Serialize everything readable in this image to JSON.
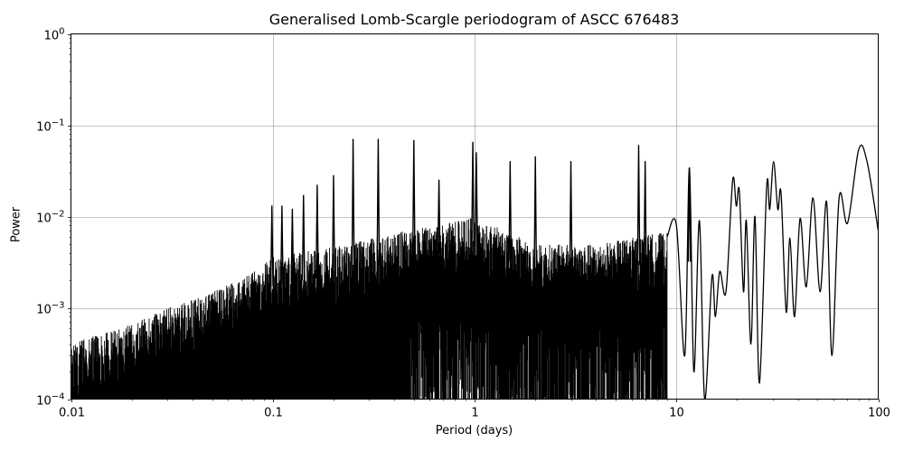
{
  "chart_data": {
    "type": "line",
    "title": "Generalised Lomb-Scargle periodogram of ASCC 676483",
    "xlabel": "Period (days)",
    "ylabel": "Power",
    "xscale": "log",
    "yscale": "log",
    "xlim": [
      0.01,
      100
    ],
    "ylim": [
      0.0001,
      1
    ],
    "grid": true,
    "line_color": "#000000",
    "x_ticks": [
      {
        "value": 0.01,
        "label": "0.01"
      },
      {
        "value": 0.1,
        "label": "0.1"
      },
      {
        "value": 1,
        "label": "1"
      },
      {
        "value": 10,
        "label": "10"
      },
      {
        "value": 100,
        "label": "100"
      }
    ],
    "y_ticks": [
      {
        "value": 1,
        "base": "10",
        "exp": "0"
      },
      {
        "value": 0.1,
        "base": "10",
        "exp": "−1"
      },
      {
        "value": 0.01,
        "base": "10",
        "exp": "−2"
      },
      {
        "value": 0.001,
        "base": "10",
        "exp": "−3"
      },
      {
        "value": 0.0001,
        "base": "10",
        "exp": "−4"
      }
    ],
    "noise_envelope": [
      {
        "period": 0.01,
        "power": 0.00025
      },
      {
        "period": 0.02,
        "power": 0.0004
      },
      {
        "period": 0.03,
        "power": 0.0006
      },
      {
        "period": 0.05,
        "power": 0.0009
      },
      {
        "period": 0.08,
        "power": 0.0015
      },
      {
        "period": 0.1,
        "power": 0.0022
      },
      {
        "period": 0.2,
        "power": 0.0028
      },
      {
        "period": 0.4,
        "power": 0.004
      },
      {
        "period": 0.7,
        "power": 0.005
      },
      {
        "period": 1.0,
        "power": 0.006
      },
      {
        "period": 2.0,
        "power": 0.003
      },
      {
        "period": 4.0,
        "power": 0.003
      },
      {
        "period": 8.0,
        "power": 0.004
      }
    ],
    "peaks": [
      {
        "period": 0.099,
        "power": 0.013
      },
      {
        "period": 0.111,
        "power": 0.013
      },
      {
        "period": 0.125,
        "power": 0.012
      },
      {
        "period": 0.142,
        "power": 0.017
      },
      {
        "period": 0.166,
        "power": 0.022
      },
      {
        "period": 0.2,
        "power": 0.028
      },
      {
        "period": 0.25,
        "power": 0.07
      },
      {
        "period": 0.333,
        "power": 0.07
      },
      {
        "period": 0.5,
        "power": 0.068
      },
      {
        "period": 0.666,
        "power": 0.025
      },
      {
        "period": 0.98,
        "power": 0.065
      },
      {
        "period": 1.02,
        "power": 0.05
      },
      {
        "period": 1.5,
        "power": 0.04
      },
      {
        "period": 2.0,
        "power": 0.045
      },
      {
        "period": 3.0,
        "power": 0.04
      },
      {
        "period": 6.5,
        "power": 0.06
      },
      {
        "period": 7.0,
        "power": 0.04
      },
      {
        "period": 11.6,
        "power": 0.034
      }
    ],
    "long_period_curve": [
      {
        "period": 9.0,
        "power": 0.006
      },
      {
        "period": 10.0,
        "power": 0.008
      },
      {
        "period": 11.0,
        "power": 0.0003
      },
      {
        "period": 11.6,
        "power": 0.034
      },
      {
        "period": 12.2,
        "power": 0.0002
      },
      {
        "period": 13.0,
        "power": 0.009
      },
      {
        "period": 13.8,
        "power": 0.0001
      },
      {
        "period": 15.0,
        "power": 0.0022
      },
      {
        "period": 15.6,
        "power": 0.0008
      },
      {
        "period": 16.4,
        "power": 0.0025
      },
      {
        "period": 17.6,
        "power": 0.0015
      },
      {
        "period": 19.0,
        "power": 0.025
      },
      {
        "period": 19.8,
        "power": 0.013
      },
      {
        "period": 20.5,
        "power": 0.019
      },
      {
        "period": 21.5,
        "power": 0.0015
      },
      {
        "period": 22.2,
        "power": 0.009
      },
      {
        "period": 23.4,
        "power": 0.0004
      },
      {
        "period": 24.5,
        "power": 0.01
      },
      {
        "period": 25.8,
        "power": 0.00015
      },
      {
        "period": 28.0,
        "power": 0.021
      },
      {
        "period": 29.0,
        "power": 0.012
      },
      {
        "period": 30.3,
        "power": 0.04
      },
      {
        "period": 31.8,
        "power": 0.012
      },
      {
        "period": 33.0,
        "power": 0.018
      },
      {
        "period": 35.0,
        "power": 0.0009
      },
      {
        "period": 36.5,
        "power": 0.0058
      },
      {
        "period": 38.5,
        "power": 0.0008
      },
      {
        "period": 41.0,
        "power": 0.0095
      },
      {
        "period": 44.0,
        "power": 0.0017
      },
      {
        "period": 47.5,
        "power": 0.016
      },
      {
        "period": 51.5,
        "power": 0.0015
      },
      {
        "period": 55.5,
        "power": 0.0145
      },
      {
        "period": 59.0,
        "power": 0.0003
      },
      {
        "period": 64.0,
        "power": 0.016
      },
      {
        "period": 70.5,
        "power": 0.0085
      },
      {
        "period": 80.0,
        "power": 0.054
      },
      {
        "period": 88.0,
        "power": 0.04
      },
      {
        "period": 100.0,
        "power": 0.007
      }
    ]
  }
}
